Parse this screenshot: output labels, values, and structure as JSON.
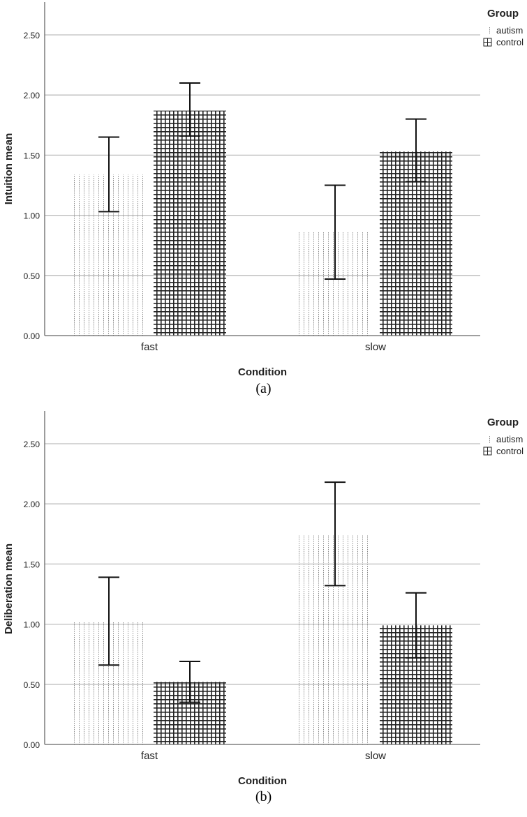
{
  "chart_data": [
    {
      "type": "bar",
      "caption": "(a)",
      "xlabel": "Condition",
      "ylabel": "Intuition mean",
      "categories": [
        "fast",
        "slow"
      ],
      "ylim": [
        0,
        2.75
      ],
      "yticks": [
        "0.00",
        "0.50",
        "1.00",
        "1.50",
        "2.00",
        "2.50"
      ],
      "grid": true,
      "legend": {
        "title": "Group",
        "placement": "top-right"
      },
      "series": [
        {
          "name": "autism",
          "pattern": "dots",
          "values": [
            1.34,
            0.86
          ],
          "err_low": [
            1.03,
            0.47
          ],
          "err_high": [
            1.65,
            1.25
          ]
        },
        {
          "name": "control",
          "pattern": "grid",
          "values": [
            1.87,
            1.53
          ],
          "err_low": [
            1.66,
            1.28
          ],
          "err_high": [
            2.1,
            1.8
          ]
        }
      ]
    },
    {
      "type": "bar",
      "caption": "(b)",
      "xlabel": "Condition",
      "ylabel": "Deliberation mean",
      "categories": [
        "fast",
        "slow"
      ],
      "ylim": [
        0,
        2.75
      ],
      "yticks": [
        "0.00",
        "0.50",
        "1.00",
        "1.50",
        "2.00",
        "2.50"
      ],
      "grid": true,
      "legend": {
        "title": "Group",
        "placement": "top-right"
      },
      "series": [
        {
          "name": "autism",
          "pattern": "dots",
          "values": [
            1.02,
            1.74
          ],
          "err_low": [
            0.66,
            1.32
          ],
          "err_high": [
            1.39,
            2.18
          ]
        },
        {
          "name": "control",
          "pattern": "grid",
          "values": [
            0.52,
            0.99
          ],
          "err_low": [
            0.35,
            0.72
          ],
          "err_high": [
            0.69,
            1.26
          ]
        }
      ]
    }
  ]
}
